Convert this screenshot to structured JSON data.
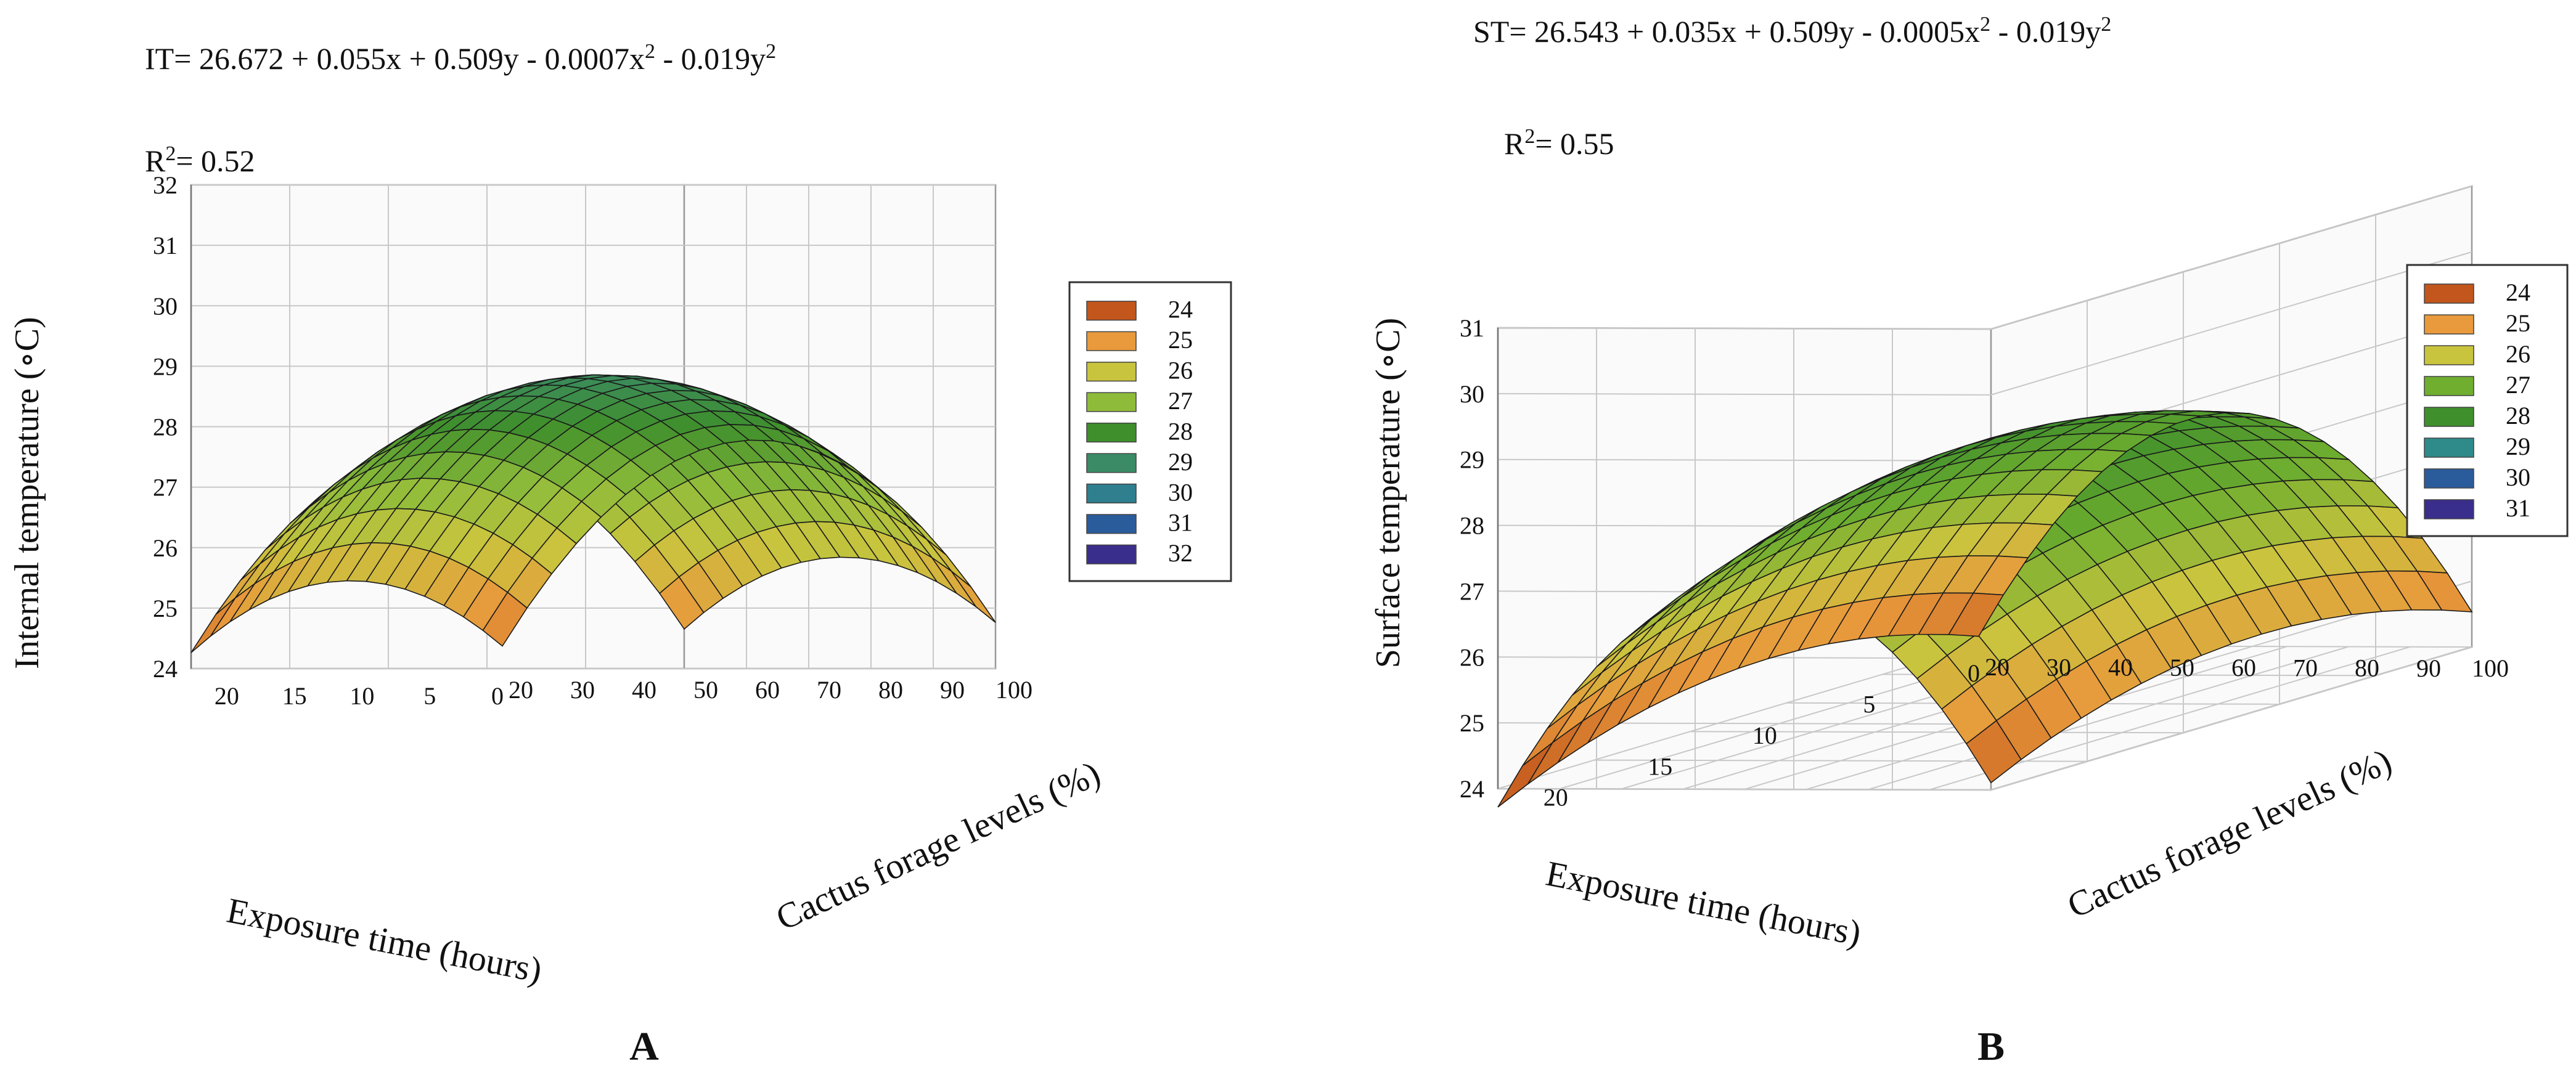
{
  "figure": {
    "panels": [
      "A",
      "B"
    ]
  },
  "chart_data": [
    {
      "type": "surface3d",
      "panel_label": "A",
      "equation": {
        "lhs": "IT",
        "rhs_parts": [
          "= 26.672 + 0.055x + 0.509y - 0.0007x",
          "2",
          " - 0.019y",
          "2"
        ],
        "coefficients": {
          "intercept": 26.672,
          "x": 0.055,
          "y": 0.509,
          "x2": -0.0007,
          "y2": -0.019
        }
      },
      "r_squared": {
        "label": "R",
        "sup": "2",
        "value": "= 0.52"
      },
      "zlabel": "Internal temperature (∘C)",
      "xlabel": "Exposure time (hours)",
      "ylabel": "Cactus forage levels (%)",
      "zticks": [
        "24",
        "25",
        "26",
        "27",
        "28",
        "29",
        "30",
        "31",
        "32"
      ],
      "zlim": [
        24,
        32
      ],
      "xticks": [
        "20",
        "15",
        "10",
        "5",
        "0"
      ],
      "xlim": [
        0,
        23
      ],
      "yticks": [
        "20",
        "30",
        "40",
        "50",
        "60",
        "70",
        "80",
        "90",
        "100"
      ],
      "ylim": [
        20,
        100
      ],
      "legend": {
        "position": "right",
        "entries": [
          {
            "label": "24",
            "color": "#c2561c"
          },
          {
            "label": "25",
            "color": "#e89a3c"
          },
          {
            "label": "26",
            "color": "#c9c43e"
          },
          {
            "label": "27",
            "color": "#8ebc3a"
          },
          {
            "label": "28",
            "color": "#3f8f2c"
          },
          {
            "label": "29",
            "color": "#3a8b66"
          },
          {
            "label": "30",
            "color": "#2f7f8f"
          },
          {
            "label": "31",
            "color": "#2a5c9c"
          },
          {
            "label": "32",
            "color": "#3a2e8c"
          }
        ]
      }
    },
    {
      "type": "surface3d",
      "panel_label": "B",
      "equation": {
        "lhs": "ST",
        "rhs_parts": [
          "= 26.543 + 0.035x + 0.509y - 0.0005x",
          "2",
          " - 0.019y",
          "2"
        ],
        "coefficients": {
          "intercept": 26.543,
          "x": 0.035,
          "y": 0.509,
          "x2": -0.0005,
          "y2": -0.019
        }
      },
      "r_squared": {
        "label": "R",
        "sup": "2",
        "value": "= 0.55"
      },
      "zlabel": "Surface temperature (∘C)",
      "xlabel": "Exposure time (hours)",
      "ylabel": "Cactus forage levels (%)",
      "zticks": [
        "24",
        "25",
        "26",
        "27",
        "28",
        "29",
        "30",
        "31"
      ],
      "zlim": [
        24,
        31
      ],
      "xticks": [
        "20",
        "15",
        "10",
        "5",
        "0"
      ],
      "xlim": [
        0,
        23
      ],
      "yticks": [
        "20",
        "30",
        "40",
        "50",
        "60",
        "70",
        "80",
        "90",
        "100"
      ],
      "ylim": [
        20,
        100
      ],
      "legend": {
        "position": "right",
        "entries": [
          {
            "label": "24",
            "color": "#c2561c"
          },
          {
            "label": "25",
            "color": "#e89a3c"
          },
          {
            "label": "26",
            "color": "#c9c43e"
          },
          {
            "label": "27",
            "color": "#6fae2f"
          },
          {
            "label": "28",
            "color": "#3f8f2c"
          },
          {
            "label": "29",
            "color": "#2f8a8a"
          },
          {
            "label": "30",
            "color": "#2a5c9c"
          },
          {
            "label": "31",
            "color": "#3a2e8c"
          }
        ]
      }
    }
  ]
}
